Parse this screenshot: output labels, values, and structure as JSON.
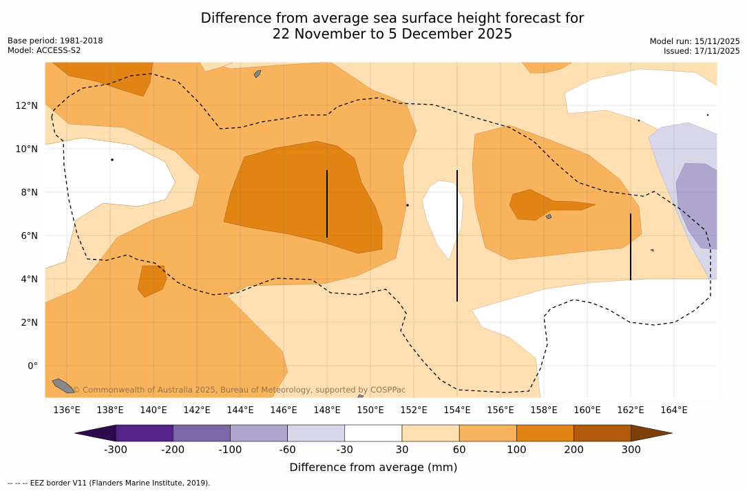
{
  "title": {
    "line1": "Difference from average sea surface height forecast for",
    "line2": "22 November to 5 December 2025"
  },
  "meta": {
    "base_period": "Base period: 1981-2018",
    "model": "Model: ACCESS-S2",
    "model_run": "Model run: 15/11/2025",
    "issued": "Issued: 17/11/2025"
  },
  "map": {
    "lon_labels": [
      "136°E",
      "138°E",
      "140°E",
      "142°E",
      "144°E",
      "146°E",
      "148°E",
      "150°E",
      "152°E",
      "154°E",
      "156°E",
      "158°E",
      "160°E",
      "162°E",
      "164°E"
    ],
    "lat_labels": [
      "12°N",
      "10°N",
      "8°N",
      "6°N",
      "4°N",
      "2°N",
      "0°"
    ],
    "watermark": "© Commonwealth of Australia 2025, Bureau of Meteorology, supported by COSPPac"
  },
  "colorbar": {
    "ticks": [
      "-300",
      "-200",
      "-100",
      "-60",
      "-30",
      "30",
      "60",
      "100",
      "200",
      "300"
    ],
    "label": "Difference from average (mm)",
    "colors": {
      "under": "#2e0a4f",
      "neg300_200": "#54238a",
      "neg200_100": "#7b68a8",
      "neg100_60": "#aea6cf",
      "neg60_30": "#d8d7ea",
      "neutral": "#ffffff",
      "pos30_60": "#fddfb1",
      "pos60_100": "#f9b35c",
      "pos100_200": "#e28414",
      "pos200_300": "#b25a0b",
      "over": "#7e3f0a"
    }
  },
  "footnote": "--  --  -- EEZ border V11 (Flanders Marine Institute, 2019)."
}
